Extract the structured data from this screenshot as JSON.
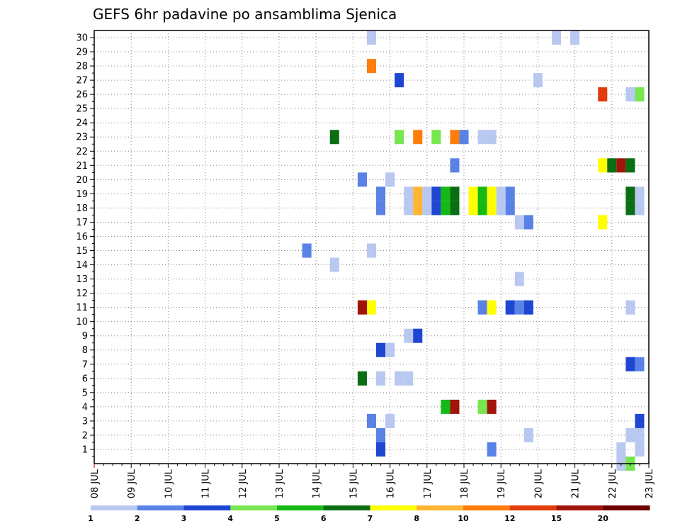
{
  "chart_data": {
    "type": "heatmap",
    "title": "GEFS 6hr padavine po ansamblima Sjenica",
    "x_tick_labels": [
      "08 JUL",
      "09 JUL",
      "10 JUL",
      "11 JUL",
      "12 JUL",
      "13 JUL",
      "14 JUL",
      "15 JUL",
      "16 JUL",
      "17 JUL",
      "18 JUL",
      "19 JUL",
      "20 JUL",
      "21 JUL",
      "22 JUL",
      "23 JUL"
    ],
    "y_tick_labels": [
      "1",
      "2",
      "3",
      "4",
      "5",
      "6",
      "7",
      "8",
      "9",
      "10",
      "11",
      "12",
      "13",
      "14",
      "15",
      "16",
      "17",
      "18",
      "19",
      "20",
      "21",
      "22",
      "23",
      "24",
      "25",
      "26",
      "27",
      "28",
      "29",
      "30"
    ],
    "ylim": [
      0,
      30
    ],
    "time_steps_per_day": 4,
    "grid": "dotted",
    "colorbar": {
      "levels": [
        "1",
        "2",
        "3",
        "4",
        "5",
        "6",
        "7",
        "8",
        "10",
        "12",
        "15",
        "20"
      ],
      "colors": [
        "#b8c8f0",
        "#5a82e6",
        "#1e46d2",
        "#78e650",
        "#14b914",
        "#0a6e14",
        "#ffff00",
        "#ffb432",
        "#ff7d0a",
        "#e13c0a",
        "#a0140a",
        "#6e0000"
      ]
    },
    "cells": [
      {
        "member": 30,
        "day": 7.5,
        "bin": 1
      },
      {
        "member": 30,
        "day": 12.5,
        "bin": 1
      },
      {
        "member": 30,
        "day": 13.0,
        "bin": 1
      },
      {
        "member": 28,
        "day": 7.5,
        "bin": 9
      },
      {
        "member": 27,
        "day": 8.25,
        "bin": 3
      },
      {
        "member": 27,
        "day": 12.0,
        "bin": 1
      },
      {
        "member": 26,
        "day": 13.75,
        "bin": 10
      },
      {
        "member": 26,
        "day": 14.5,
        "bin": 1
      },
      {
        "member": 26,
        "day": 14.75,
        "bin": 4
      },
      {
        "member": 23,
        "day": 6.5,
        "bin": 6
      },
      {
        "member": 23,
        "day": 8.25,
        "bin": 4
      },
      {
        "member": 23,
        "day": 8.75,
        "bin": 9
      },
      {
        "member": 23,
        "day": 9.25,
        "bin": 4
      },
      {
        "member": 23,
        "day": 9.75,
        "bin": 9
      },
      {
        "member": 23,
        "day": 10.0,
        "bin": 2
      },
      {
        "member": 23,
        "day": 10.5,
        "bin": 1
      },
      {
        "member": 23,
        "day": 10.75,
        "bin": 1
      },
      {
        "member": 21,
        "day": 9.75,
        "bin": 2
      },
      {
        "member": 21,
        "day": 13.75,
        "bin": 7
      },
      {
        "member": 21,
        "day": 14.0,
        "bin": 6
      },
      {
        "member": 21,
        "day": 14.25,
        "bin": 11
      },
      {
        "member": 21,
        "day": 14.5,
        "bin": 6
      },
      {
        "member": 20,
        "day": 7.25,
        "bin": 2
      },
      {
        "member": 20,
        "day": 8.0,
        "bin": 1
      },
      {
        "member": 19,
        "day": 7.75,
        "bin": 2
      },
      {
        "member": 19,
        "day": 8.5,
        "bin": 1
      },
      {
        "member": 19,
        "day": 8.75,
        "bin": 8
      },
      {
        "member": 19,
        "day": 9.0,
        "bin": 1
      },
      {
        "member": 19,
        "day": 9.25,
        "bin": 3
      },
      {
        "member": 19,
        "day": 9.5,
        "bin": 5
      },
      {
        "member": 19,
        "day": 9.75,
        "bin": 6
      },
      {
        "member": 19,
        "day": 10.25,
        "bin": 7
      },
      {
        "member": 19,
        "day": 10.5,
        "bin": 5
      },
      {
        "member": 19,
        "day": 10.75,
        "bin": 7
      },
      {
        "member": 19,
        "day": 11.0,
        "bin": 1
      },
      {
        "member": 19,
        "day": 11.25,
        "bin": 2
      },
      {
        "member": 19,
        "day": 14.5,
        "bin": 6
      },
      {
        "member": 19,
        "day": 14.75,
        "bin": 1
      },
      {
        "member": 18,
        "day": 7.75,
        "bin": 2
      },
      {
        "member": 18,
        "day": 8.5,
        "bin": 1
      },
      {
        "member": 18,
        "day": 8.75,
        "bin": 8
      },
      {
        "member": 18,
        "day": 9.0,
        "bin": 1
      },
      {
        "member": 18,
        "day": 9.25,
        "bin": 3
      },
      {
        "member": 18,
        "day": 9.5,
        "bin": 5
      },
      {
        "member": 18,
        "day": 9.75,
        "bin": 6
      },
      {
        "member": 18,
        "day": 10.25,
        "bin": 7
      },
      {
        "member": 18,
        "day": 10.5,
        "bin": 5
      },
      {
        "member": 18,
        "day": 10.75,
        "bin": 7
      },
      {
        "member": 18,
        "day": 11.0,
        "bin": 1
      },
      {
        "member": 18,
        "day": 11.25,
        "bin": 2
      },
      {
        "member": 18,
        "day": 14.5,
        "bin": 6
      },
      {
        "member": 18,
        "day": 14.75,
        "bin": 1
      },
      {
        "member": 17,
        "day": 11.5,
        "bin": 1
      },
      {
        "member": 17,
        "day": 11.75,
        "bin": 2
      },
      {
        "member": 17,
        "day": 13.75,
        "bin": 7
      },
      {
        "member": 15,
        "day": 5.75,
        "bin": 2
      },
      {
        "member": 15,
        "day": 7.5,
        "bin": 1
      },
      {
        "member": 14,
        "day": 6.5,
        "bin": 1
      },
      {
        "member": 13,
        "day": 11.5,
        "bin": 1
      },
      {
        "member": 11,
        "day": 7.25,
        "bin": 11
      },
      {
        "member": 11,
        "day": 7.5,
        "bin": 7
      },
      {
        "member": 11,
        "day": 10.5,
        "bin": 2
      },
      {
        "member": 11,
        "day": 10.75,
        "bin": 7
      },
      {
        "member": 11,
        "day": 11.25,
        "bin": 3
      },
      {
        "member": 11,
        "day": 11.5,
        "bin": 2
      },
      {
        "member": 11,
        "day": 11.75,
        "bin": 3
      },
      {
        "member": 11,
        "day": 14.5,
        "bin": 1
      },
      {
        "member": 9,
        "day": 8.5,
        "bin": 1
      },
      {
        "member": 9,
        "day": 8.75,
        "bin": 3
      },
      {
        "member": 8,
        "day": 7.75,
        "bin": 3
      },
      {
        "member": 8,
        "day": 8.0,
        "bin": 1
      },
      {
        "member": 7,
        "day": 14.5,
        "bin": 3
      },
      {
        "member": 7,
        "day": 14.75,
        "bin": 2
      },
      {
        "member": 6,
        "day": 7.25,
        "bin": 6
      },
      {
        "member": 6,
        "day": 7.75,
        "bin": 1
      },
      {
        "member": 6,
        "day": 8.25,
        "bin": 1
      },
      {
        "member": 6,
        "day": 8.5,
        "bin": 1
      },
      {
        "member": 4,
        "day": 9.5,
        "bin": 5
      },
      {
        "member": 4,
        "day": 9.75,
        "bin": 11
      },
      {
        "member": 4,
        "day": 10.5,
        "bin": 4
      },
      {
        "member": 4,
        "day": 10.75,
        "bin": 11
      },
      {
        "member": 3,
        "day": 7.5,
        "bin": 2
      },
      {
        "member": 3,
        "day": 8.0,
        "bin": 1
      },
      {
        "member": 3,
        "day": 14.75,
        "bin": 3
      },
      {
        "member": 2,
        "day": 7.75,
        "bin": 2
      },
      {
        "member": 2,
        "day": 11.75,
        "bin": 1
      },
      {
        "member": 2,
        "day": 14.5,
        "bin": 1
      },
      {
        "member": 2,
        "day": 14.75,
        "bin": 1
      },
      {
        "member": 1,
        "day": 7.75,
        "bin": 3
      },
      {
        "member": 1,
        "day": 10.75,
        "bin": 2
      },
      {
        "member": 1,
        "day": 14.25,
        "bin": 1
      },
      {
        "member": 1,
        "day": 14.75,
        "bin": 1
      },
      {
        "member": 0,
        "day": 14.25,
        "bin": 1
      },
      {
        "member": 0,
        "day": 14.5,
        "bin": 4
      }
    ]
  }
}
